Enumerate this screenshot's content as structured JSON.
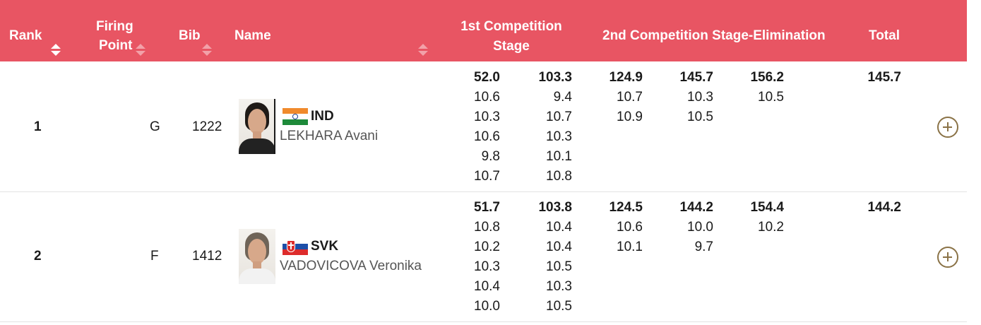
{
  "header": {
    "rank": "Rank",
    "firing_point_line1": "Firing",
    "firing_point_line2": "Point",
    "bib": "Bib",
    "name": "Name",
    "stage1_line1": "1st Competition",
    "stage1_line2": "Stage",
    "stage2": "2nd Competition Stage-Elimination",
    "total": "Total"
  },
  "colors": {
    "header_bg": "#e85563",
    "expand_icon": "#8a7246",
    "row_divider": "#e2e2e2"
  },
  "rows": [
    {
      "rank": "1",
      "firing_point": "G",
      "bib": "1222",
      "noc": "IND",
      "flag_icon": "india-flag-icon",
      "athlete": "LEKHARA Avani",
      "stage1_col1": [
        "52.0",
        "10.6",
        "10.3",
        "10.6",
        "9.8",
        "10.7"
      ],
      "stage1_col2": [
        "103.3",
        "9.4",
        "10.7",
        "10.3",
        "10.1",
        "10.8"
      ],
      "stage2_col1": [
        "124.9",
        "10.7",
        "10.9"
      ],
      "stage2_col2": [
        "145.7",
        "10.3",
        "10.5"
      ],
      "stage2_col3": [
        "156.2",
        "10.5"
      ],
      "total": "145.7"
    },
    {
      "rank": "2",
      "firing_point": "F",
      "bib": "1412",
      "noc": "SVK",
      "flag_icon": "slovakia-flag-icon",
      "athlete": "VADOVICOVA Veronika",
      "stage1_col1": [
        "51.7",
        "10.8",
        "10.2",
        "10.3",
        "10.4",
        "10.0"
      ],
      "stage1_col2": [
        "103.8",
        "10.4",
        "10.4",
        "10.5",
        "10.3",
        "10.5"
      ],
      "stage2_col1": [
        "124.5",
        "10.6",
        "10.1"
      ],
      "stage2_col2": [
        "144.2",
        "10.0",
        "9.7"
      ],
      "stage2_col3": [
        "154.4",
        "10.2"
      ],
      "total": "144.2"
    }
  ]
}
